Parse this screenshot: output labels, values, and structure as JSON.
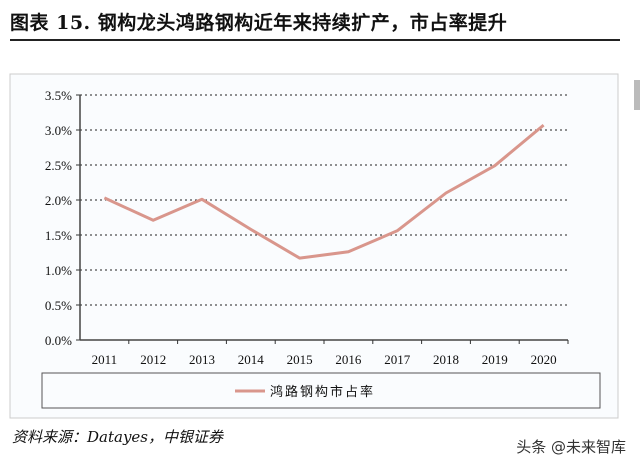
{
  "title": "图表 15. 钢构龙头鸿路钢构近年来持续扩产，市占率提升",
  "source": "资料来源：Datayes，中银证券",
  "watermark": "头条 @未来智库",
  "chart_data": {
    "type": "line",
    "categories": [
      "2011",
      "2012",
      "2013",
      "2014",
      "2015",
      "2016",
      "2017",
      "2018",
      "2019",
      "2020"
    ],
    "series": [
      {
        "name": "鸿路钢构市占率",
        "values": [
          2.03,
          1.71,
          2.01,
          1.58,
          1.17,
          1.26,
          1.56,
          2.1,
          2.49,
          3.07
        ],
        "color": "#d9968c"
      }
    ],
    "yticks": [
      "0.0%",
      "0.5%",
      "1.0%",
      "1.5%",
      "2.0%",
      "2.5%",
      "3.0%",
      "3.5%"
    ],
    "ylim": [
      0,
      3.5
    ],
    "grid": true,
    "legend": "bottom"
  }
}
